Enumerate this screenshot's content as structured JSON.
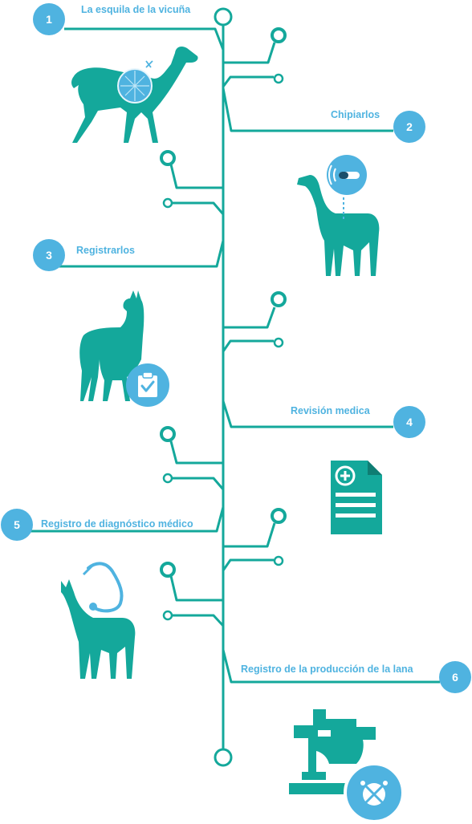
{
  "colors": {
    "teal": "#14a89b",
    "blue": "#4fb3e0",
    "white": "#ffffff"
  },
  "steps": [
    {
      "number": "1",
      "label": "La esquila de la vicuña"
    },
    {
      "number": "2",
      "label": "Chipiarlos"
    },
    {
      "number": "3",
      "label": "Registrarlos"
    },
    {
      "number": "4",
      "label": "Revisión medica"
    },
    {
      "number": "5",
      "label": "Registro de diagnóstico médico"
    },
    {
      "number": "6",
      "label": "Registro de la producción de la lana"
    }
  ],
  "icons": [
    "vicuna-shearing-icon",
    "chipped-llama-icon",
    "llama-register-icon",
    "medical-record-icon",
    "llama-stethoscope-icon",
    "sewing-machine-icon"
  ]
}
